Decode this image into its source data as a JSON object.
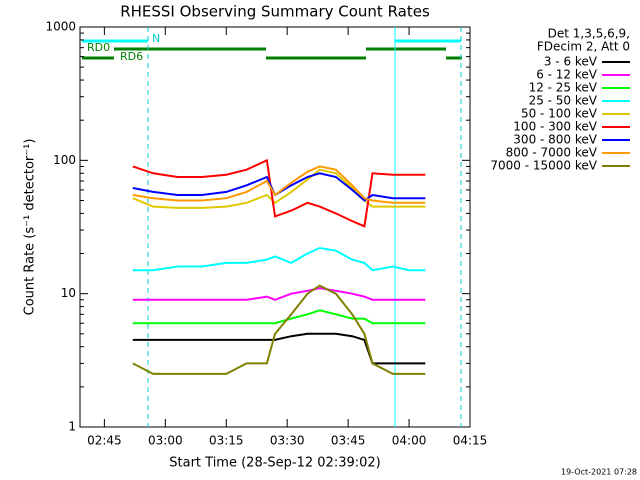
{
  "chart_data": {
    "type": "line",
    "title": "RHESSI Observing Summary Count Rates",
    "x_label": "Start Time (28-Sep-12 02:39:02)",
    "y_label": "Count Rate (s⁻¹ detector⁻¹)",
    "legend_header": [
      "Det 1,3,5,6,9,",
      "FDecim 2, Att 0"
    ],
    "annotations": [
      "N",
      "RD0",
      "RD6"
    ],
    "footer": "19-Oct-2021 07:28",
    "log_y": true,
    "xlim": [
      "02:39",
      "04:15"
    ],
    "xticks": [
      "02:45",
      "03:00",
      "03:15",
      "03:30",
      "03:45",
      "04:00",
      "04:15"
    ],
    "ylim": [
      1,
      1000
    ],
    "yticks": [
      1,
      10,
      100,
      1000
    ],
    "x": [
      "02:52",
      "02:57",
      "03:03",
      "03:09",
      "03:15",
      "03:20",
      "03:25",
      "03:27",
      "03:31",
      "03:35",
      "03:38",
      "03:42",
      "03:46",
      "03:49",
      "03:51",
      "03:56",
      "04:00",
      "04:04"
    ],
    "series": [
      {
        "name": "3 - 6 keV",
        "color": "#000000",
        "values": [
          4.5,
          4.5,
          4.5,
          4.5,
          4.5,
          4.5,
          4.5,
          4.5,
          4.8,
          5,
          5,
          5,
          4.8,
          4.5,
          3,
          3,
          3,
          3
        ]
      },
      {
        "name": "6 - 12 keV",
        "color": "#ff00ff",
        "values": [
          9,
          9,
          9,
          9,
          9,
          9,
          9.5,
          9,
          10,
          10.5,
          11,
          10.5,
          10,
          9.5,
          9,
          9,
          9,
          9
        ]
      },
      {
        "name": "12 - 25 keV",
        "color": "#00ff00",
        "values": [
          6,
          6,
          6,
          6,
          6,
          6,
          6,
          6,
          6.5,
          7,
          7.5,
          7,
          6.5,
          6.5,
          6,
          6,
          6,
          6
        ]
      },
      {
        "name": "25 - 50 keV",
        "color": "#00ffff",
        "values": [
          15,
          15,
          16,
          16,
          17,
          17,
          18,
          19,
          17,
          20,
          22,
          21,
          18,
          17,
          15,
          16,
          15,
          15
        ]
      },
      {
        "name": "50 - 100 keV",
        "color": "#e0c800",
        "values": [
          52,
          45,
          44,
          44,
          45,
          48,
          55,
          48,
          58,
          72,
          85,
          80,
          62,
          50,
          45,
          45,
          45,
          45
        ]
      },
      {
        "name": "100 - 300 keV",
        "color": "#ff0000",
        "values": [
          90,
          80,
          75,
          75,
          78,
          85,
          100,
          38,
          42,
          48,
          45,
          40,
          35,
          32,
          80,
          78,
          78,
          78
        ]
      },
      {
        "name": "300 - 800 keV",
        "color": "#0000ff",
        "values": [
          62,
          58,
          55,
          55,
          58,
          65,
          75,
          55,
          65,
          75,
          80,
          75,
          60,
          50,
          55,
          52,
          52,
          52
        ]
      },
      {
        "name": "800 - 7000 keV",
        "color": "#ff9900",
        "values": [
          55,
          52,
          50,
          50,
          52,
          58,
          70,
          55,
          68,
          82,
          90,
          85,
          65,
          52,
          50,
          48,
          48,
          48
        ]
      },
      {
        "name": "7000 - 15000 keV",
        "color": "#808000",
        "values": [
          3,
          2.5,
          2.5,
          2.5,
          2.5,
          3,
          3,
          5,
          7,
          10,
          11.5,
          10,
          7,
          5,
          3,
          2.5,
          2.5,
          2.5
        ]
      }
    ]
  }
}
